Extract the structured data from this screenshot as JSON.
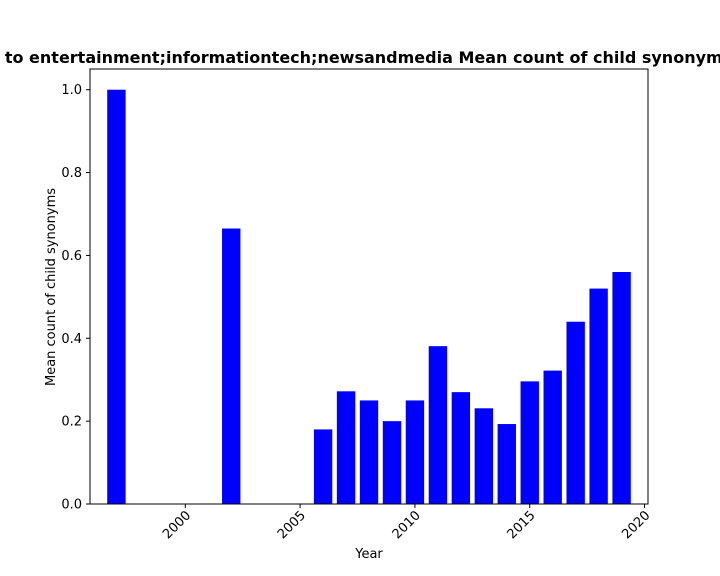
{
  "chart_data": {
    "type": "bar",
    "title": "d to entertainment;informationtech;newsandmedia Mean count of child synonyms",
    "xlabel": "Year",
    "ylabel": "Mean count of child synonyms",
    "x": [
      1997,
      2002,
      2006,
      2007,
      2008,
      2009,
      2010,
      2011,
      2012,
      2013,
      2014,
      2015,
      2016,
      2017,
      2018,
      2019
    ],
    "values": [
      1.0,
      0.665,
      0.18,
      0.272,
      0.25,
      0.2,
      0.25,
      0.381,
      0.27,
      0.231,
      0.193,
      0.296,
      0.322,
      0.44,
      0.52,
      0.56
    ],
    "xlim": [
      1995.85,
      2020.15
    ],
    "ylim": [
      0,
      1.05
    ],
    "xticks": [
      "2000",
      "2005",
      "2010",
      "2015",
      "2020"
    ],
    "yticks": [
      "0.0",
      "0.2",
      "0.4",
      "0.6",
      "0.8",
      "1.0"
    ],
    "bar_color": "#0000ff",
    "grid": false
  }
}
